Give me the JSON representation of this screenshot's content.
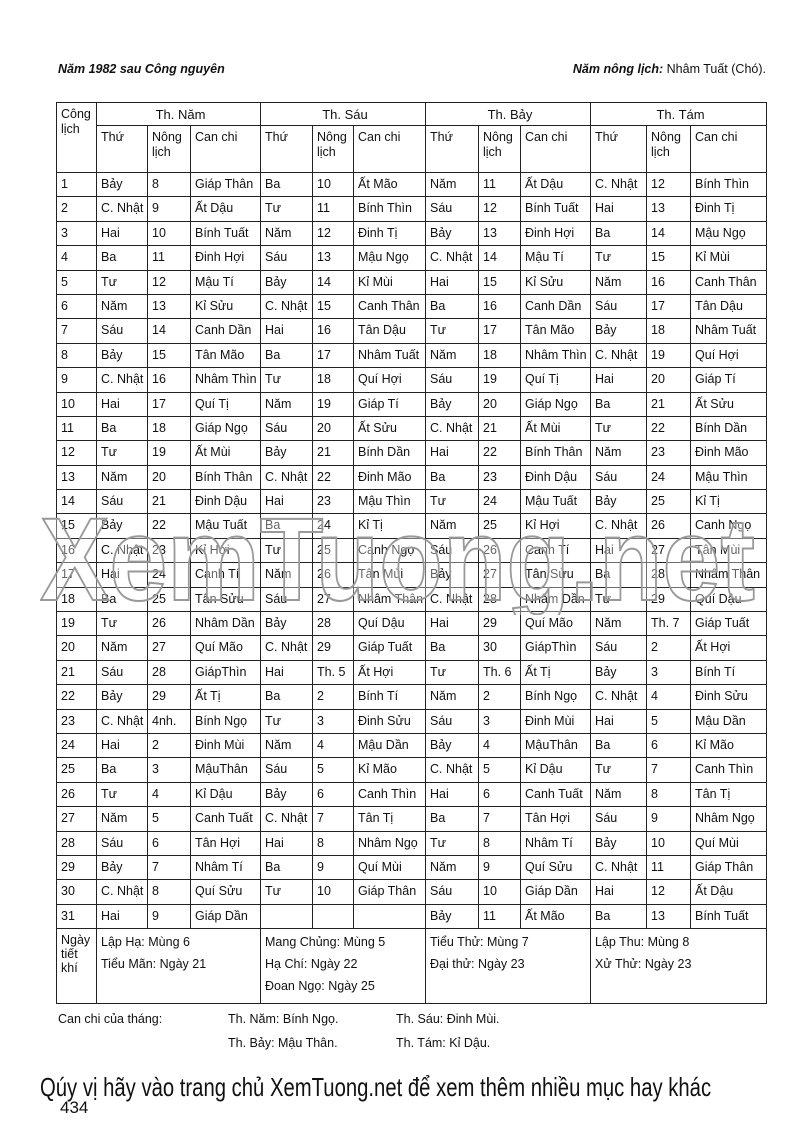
{
  "header": {
    "left": "Năm 1982 sau Công nguyên",
    "right_label": "Năm nông lịch:",
    "right_value": " Nhâm Tuất (Chó)."
  },
  "table": {
    "cong_lich": "Công lịch",
    "months": [
      "Th. Năm",
      "Th. Sáu",
      "Th. Bảy",
      "Th. Tám"
    ],
    "sub_headers": [
      "Thứ",
      "Nông lịch",
      "Can chi"
    ],
    "rows": [
      [
        "1",
        "Bảy",
        "8",
        "Giáp Thân",
        "Ba",
        "10",
        "Ất Mão",
        "Năm",
        "11",
        "Ất Dậu",
        "C. Nhật",
        "12",
        "Bính Thìn"
      ],
      [
        "2",
        "C. Nhật",
        "9",
        "Ất Dậu",
        "Tư",
        "11",
        "Bính Thìn",
        "Sáu",
        "12",
        "Bính Tuất",
        "Hai",
        "13",
        "Đinh Tị"
      ],
      [
        "3",
        "Hai",
        "10",
        "Bính Tuất",
        "Năm",
        "12",
        "Đinh Tị",
        "Bảy",
        "13",
        "Đinh Hợi",
        "Ba",
        "14",
        "Mậu Ngọ"
      ],
      [
        "4",
        "Ba",
        "11",
        "Đinh Hợi",
        "Sáu",
        "13",
        "Mậu Ngọ",
        "C. Nhật",
        "14",
        "Mậu Tí",
        "Tư",
        "15",
        "Kỉ Mùi"
      ],
      [
        "5",
        "Tư",
        "12",
        "Mậu Tí",
        "Bảy",
        "14",
        "Kỉ Mùi",
        "Hai",
        "15",
        "Kỉ Sửu",
        "Năm",
        "16",
        "Canh Thân"
      ],
      [
        "6",
        "Năm",
        "13",
        "Kỉ Sửu",
        "C. Nhật",
        "15",
        "Canh Thân",
        "Ba",
        "16",
        "Canh Dần",
        "Sáu",
        "17",
        "Tân Dậu"
      ],
      [
        "7",
        "Sáu",
        "14",
        "Canh Dần",
        "Hai",
        "16",
        "Tân Dậu",
        "Tư",
        "17",
        "Tân Mão",
        "Bảy",
        "18",
        "Nhâm Tuất"
      ],
      [
        "8",
        "Bảy",
        "15",
        "Tân Mão",
        "Ba",
        "17",
        "Nhâm Tuất",
        "Năm",
        "18",
        "Nhâm Thìn",
        "C. Nhật",
        "19",
        "Quí Hợi"
      ],
      [
        "9",
        "C. Nhật",
        "16",
        "Nhâm Thìn",
        "Tư",
        "18",
        "Quí Hợi",
        "Sáu",
        "19",
        "Quí Tị",
        "Hai",
        "20",
        "Giáp Tí"
      ],
      [
        "10",
        "Hai",
        "17",
        "Quí Tị",
        "Năm",
        "19",
        "Giáp Tí",
        "Bảy",
        "20",
        "Giáp Ngọ",
        "Ba",
        "21",
        "Ất Sửu"
      ],
      [
        "11",
        "Ba",
        "18",
        "Giáp Ngọ",
        "Sáu",
        "20",
        "Ất Sửu",
        "C. Nhật",
        "21",
        "Ất Mùi",
        "Tư",
        "22",
        "Bính Dần"
      ],
      [
        "12",
        "Tư",
        "19",
        "Ất Mùi",
        "Bảy",
        "21",
        "Bính Dần",
        "Hai",
        "22",
        "Bính Thân",
        "Năm",
        "23",
        "Đinh Mão"
      ],
      [
        "13",
        "Năm",
        "20",
        "Bính Thân",
        "C. Nhật",
        "22",
        "Đinh Mão",
        "Ba",
        "23",
        "Đinh Dậu",
        "Sáu",
        "24",
        "Mậu Thìn"
      ],
      [
        "14",
        "Sáu",
        "21",
        "Đinh Dậu",
        "Hai",
        "23",
        "Mậu Thìn",
        "Tư",
        "24",
        "Mậu Tuất",
        "Bảy",
        "25",
        "Kỉ Tị"
      ],
      [
        "15",
        "Bảy",
        "22",
        "Mậu Tuất",
        "Ba",
        "24",
        "Kỉ Tị",
        "Năm",
        "25",
        "Kỉ Hợi",
        "C. Nhật",
        "26",
        "Canh Ngọ"
      ],
      [
        "16",
        "C. Nhật",
        "23",
        "Kỉ Hợi",
        "Tư",
        "25",
        "Canh Ngọ",
        "Sáu",
        "26",
        "Canh Tí",
        "Hai",
        "27",
        "Tân Mùi"
      ],
      [
        "17",
        "Hai",
        "24",
        "Canh Tí",
        "Năm",
        "26",
        "Tân Mùi",
        "Bảy",
        "27",
        "Tân Sửu",
        "Ba",
        "28",
        "Nhâm Thân"
      ],
      [
        "18",
        "Ba",
        "25",
        "Tân Sửu",
        "Sáu",
        "27",
        "Nhâm Thân",
        "C. Nhật",
        "28",
        "Nhâm Dần",
        "Tư",
        "29",
        "Quí Dậu"
      ],
      [
        "19",
        "Tư",
        "26",
        "Nhâm Dần",
        "Bảy",
        "28",
        "Quí Dậu",
        "Hai",
        "29",
        "Quí Mão",
        "Năm",
        "Th. 7",
        "Giáp Tuất"
      ],
      [
        "20",
        "Năm",
        "27",
        "Quí Mão",
        "C. Nhật",
        "29",
        "Giáp Tuất",
        "Ba",
        "30",
        "GiápThìn",
        "Sáu",
        "2",
        "Ất Hợi"
      ],
      [
        "21",
        "Sáu",
        "28",
        "GiápThìn",
        "Hai",
        "Th. 5",
        "Ất Hợi",
        "Tư",
        "Th. 6",
        "Ất Tị",
        "Bảy",
        "3",
        "Bính Tí"
      ],
      [
        "22",
        "Bảy",
        "29",
        "Ất Tị",
        "Ba",
        "2",
        "Bính Tí",
        "Năm",
        "2",
        "Bính Ngọ",
        "C. Nhật",
        "4",
        "Đinh Sửu"
      ],
      [
        "23",
        "C. Nhật",
        "4nh.",
        "Bính Ngọ",
        "Tư",
        "3",
        "Đinh Sửu",
        "Sáu",
        "3",
        "Đinh Mùi",
        "Hai",
        "5",
        "Mậu Dần"
      ],
      [
        "24",
        "Hai",
        "2",
        "Đinh Mùi",
        "Năm",
        "4",
        "Mậu Dần",
        "Bảy",
        "4",
        "MậuThân",
        "Ba",
        "6",
        "Kỉ Mão"
      ],
      [
        "25",
        "Ba",
        "3",
        "MậuThân",
        "Sáu",
        "5",
        "Kỉ Mão",
        "C. Nhật",
        "5",
        "Kỉ Dậu",
        "Tư",
        "7",
        "Canh Thìn"
      ],
      [
        "26",
        "Tư",
        "4",
        "Kỉ Dậu",
        "Bảy",
        "6",
        "Canh Thìn",
        "Hai",
        "6",
        "Canh Tuất",
        "Năm",
        "8",
        "Tân Tị"
      ],
      [
        "27",
        "Năm",
        "5",
        "Canh Tuất",
        "C. Nhật",
        "7",
        "Tân Tị",
        "Ba",
        "7",
        "Tân Hợi",
        "Sáu",
        "9",
        "Nhâm Ngọ"
      ],
      [
        "28",
        "Sáu",
        "6",
        "Tân Hợi",
        "Hai",
        "8",
        "Nhâm Ngọ",
        "Tư",
        "8",
        "Nhâm Tí",
        "Bảy",
        "10",
        "Quí Mùi"
      ],
      [
        "29",
        "Bảy",
        "7",
        "Nhâm Tí",
        "Ba",
        "9",
        "Quí Mùi",
        "Năm",
        "9",
        "Quí Sửu",
        "C. Nhật",
        "11",
        "Giáp Thân"
      ],
      [
        "30",
        "C. Nhật",
        "8",
        "Quí Sửu",
        "Tư",
        "10",
        "Giáp Thân",
        "Sáu",
        "10",
        "Giáp Dần",
        "Hai",
        "12",
        "Ất Dậu"
      ],
      [
        "31",
        "Hai",
        "9",
        "Giáp Dần",
        "",
        "",
        "",
        "Bảy",
        "11",
        "Ất Mão",
        "Ba",
        "13",
        "Bính Tuất"
      ]
    ],
    "tiet_khi_label": "Ngày tiết khí",
    "tiet_khi": [
      [
        "Lập Hạ: Mùng 6",
        "Tiểu Mãn: Ngày 21"
      ],
      [
        "Mang Chủng: Mùng 5",
        "Hạ Chí: Ngày 22",
        "Đoan Ngọ: Ngày 25"
      ],
      [
        "Tiểu Thử: Mùng 7",
        "Đại thử: Ngày 23"
      ],
      [
        "Lập Thu: Mùng 8",
        "Xử Thử: Ngày 23"
      ]
    ]
  },
  "can_chi_thang": {
    "label": "Can chi của tháng:",
    "items": [
      "Th. Năm: Bính Ngọ.",
      "Th. Sáu: Đinh Mùi.",
      "Th. Bảy: Mậu Thân.",
      "Th. Tám: Kỉ Dậu."
    ]
  },
  "watermark": "XemTuong.net",
  "promo": "Qúy vị hãy vào trang chủ XemTuong.net để xem thêm nhiều mục hay khác",
  "page_number": "434"
}
